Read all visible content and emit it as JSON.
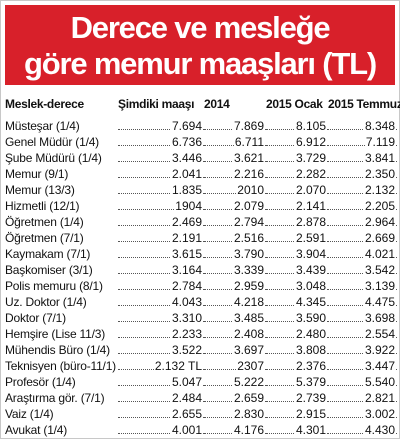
{
  "title": {
    "line1": "Derece ve mesleğe",
    "line2": "göre memur maaşları (TL)"
  },
  "columns": [
    "Meslek-derece",
    "Şimdiki maaşı",
    "2014",
    "2015 Ocak",
    "2015 Temmuz"
  ],
  "rows": [
    [
      "Müsteşar (1/4)",
      "7.694",
      "7.869",
      "8.105",
      "8.348"
    ],
    [
      "Genel Müdür (1/4)",
      "6.736",
      "6.711",
      "6.912",
      "7.119"
    ],
    [
      "Şube Müdürü (1/4)",
      "3.446",
      "3.621",
      "3.729",
      "3.841"
    ],
    [
      "Memur (9/1)",
      "2.041",
      "2.216",
      "2.282",
      "2.350"
    ],
    [
      "Memur (13/3)",
      "1.835",
      "2010",
      "2.070",
      "2.132"
    ],
    [
      "Hizmetli (12/1)",
      "1904",
      "2.079",
      "2.141",
      "2.205"
    ],
    [
      "Öğretmen (1/4)",
      "2.469",
      "2.794",
      "2.878",
      "2.964"
    ],
    [
      "Öğretmen (7/1)",
      "2.191",
      "2.516",
      "2.591",
      "2.669"
    ],
    [
      "Kaymakam (7/1)",
      "3.615",
      "3.790",
      "3.904",
      "4.021"
    ],
    [
      "Başkomiser (3/1)",
      "3.164",
      "3.339",
      "3.439",
      "3.542"
    ],
    [
      "Polis memuru (8/1)",
      "2.784",
      "2.959",
      "3.048",
      "3.139"
    ],
    [
      "Uz. Doktor (1/4)",
      "4.043",
      "4.218",
      "4.345",
      "4.475"
    ],
    [
      "Doktor (7/1)",
      "3.310",
      "3.485",
      "3.590",
      "3.698"
    ],
    [
      "Hemşire (Lise 11/3)",
      "2.233",
      "2.408",
      "2.480",
      "2.554"
    ],
    [
      "Mühendis Büro (1/4)",
      "3.522",
      "3.697",
      "3.808",
      "3.922"
    ],
    [
      "Teknisyen (büro-11/1)",
      "2.132 TL",
      "2307",
      "2.376",
      "3.447"
    ],
    [
      "Profesör (1/4)",
      "5.047",
      "5.222",
      "5.379",
      "5.540"
    ],
    [
      "Araştırma gör. (7/1)",
      "2.484",
      "2.659",
      "2.739",
      "2.821"
    ],
    [
      "Vaiz (1/4)",
      "2.655",
      "2.830",
      "2.915",
      "3.002"
    ],
    [
      "Avukat (1/4)",
      "4.001",
      "4.176",
      "4.301",
      "4.430"
    ]
  ]
}
